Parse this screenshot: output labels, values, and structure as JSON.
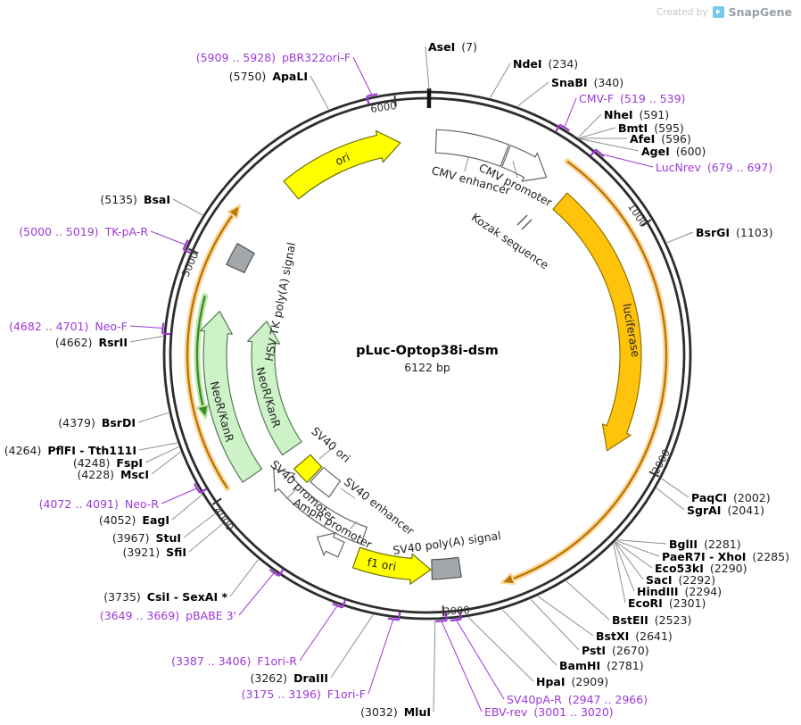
{
  "watermark": {
    "created_by": "Created by",
    "brand": "SnapGene"
  },
  "plasmid": {
    "name": "pLuc-Optop38i-dsm",
    "size": "6122 bp",
    "length_bp": 6122
  },
  "colors": {
    "ring": "#2d2d2d",
    "primer": "#9c39d6",
    "leader": "#8f8f8f",
    "yellow": "#ffff00",
    "gold": "#ffc30b",
    "light_green": "#cdf2c8",
    "gray_box": "#a2a7ac",
    "orange_arc": "#b97708",
    "green_arc": "#3f8c28"
  },
  "ticks": [
    {
      "label": "1000"
    },
    {
      "label": "2000"
    },
    {
      "label": "3000"
    },
    {
      "label": "4000"
    },
    {
      "label": "5000"
    },
    {
      "label": "6000"
    }
  ],
  "features": [
    {
      "label": "ori"
    },
    {
      "label": "CMV enhancer"
    },
    {
      "label": "CMV promoter"
    },
    {
      "label": "Kozak sequence"
    },
    {
      "label": "luciferase"
    },
    {
      "label": "HSV TK poly(A) signal"
    },
    {
      "label": "NeoR/KanR"
    },
    {
      "label": "NeoR/KanR"
    },
    {
      "label": "SV40 ori"
    },
    {
      "label": "SV40 enhancer"
    },
    {
      "label": "SV40 promoter"
    },
    {
      "label": "AmpR promoter"
    },
    {
      "label": "f1 ori"
    },
    {
      "label": "SV40 poly(A) signal"
    }
  ],
  "sites": [
    {
      "name": "pBR322ori-F",
      "pos": "(5909 .. 5928)",
      "type": "primer"
    },
    {
      "name": "ApaLI",
      "pos": "(5750)",
      "type": "enzyme"
    },
    {
      "name": "BsaI",
      "pos": "(5135)",
      "type": "enzyme"
    },
    {
      "name": "TK-pA-R",
      "pos": "(5000 .. 5019)",
      "type": "primer"
    },
    {
      "name": "Neo-F",
      "pos": "(4682 .. 4701)",
      "type": "primer"
    },
    {
      "name": "RsrII",
      "pos": "(4662)",
      "type": "enzyme"
    },
    {
      "name": "BsrDI",
      "pos": "(4379)",
      "type": "enzyme"
    },
    {
      "name": "PflFI - Tth111I",
      "pos": "(4264)",
      "type": "enzyme"
    },
    {
      "name": "FspI",
      "pos": "(4248)",
      "type": "enzyme"
    },
    {
      "name": "MscI",
      "pos": "(4228)",
      "type": "enzyme"
    },
    {
      "name": "Neo-R",
      "pos": "(4072 .. 4091)",
      "type": "primer"
    },
    {
      "name": "EagI",
      "pos": "(4052)",
      "type": "enzyme"
    },
    {
      "name": "StuI",
      "pos": "(3967)",
      "type": "enzyme"
    },
    {
      "name": "SfiI",
      "pos": "(3921)",
      "type": "enzyme"
    },
    {
      "name": "CsiI - SexAI *",
      "pos": "(3735)",
      "type": "enzyme"
    },
    {
      "name": "pBABE 3'",
      "pos": "(3649 .. 3669)",
      "type": "primer"
    },
    {
      "name": "F1ori-R",
      "pos": "(3387 .. 3406)",
      "type": "primer"
    },
    {
      "name": "DraIII",
      "pos": "(3262)",
      "type": "enzyme"
    },
    {
      "name": "F1ori-F",
      "pos": "(3175 .. 3196)",
      "type": "primer"
    },
    {
      "name": "MluI",
      "pos": "(3032)",
      "type": "enzyme"
    },
    {
      "name": "AseI",
      "pos": "(7)",
      "type": "enzyme"
    },
    {
      "name": "NdeI",
      "pos": "(234)",
      "type": "enzyme"
    },
    {
      "name": "SnaBI",
      "pos": "(340)",
      "type": "enzyme"
    },
    {
      "name": "CMV-F",
      "pos": "(519 .. 539)",
      "type": "primer"
    },
    {
      "name": "NheI",
      "pos": "(591)",
      "type": "enzyme"
    },
    {
      "name": "BmtI",
      "pos": "(595)",
      "type": "enzyme"
    },
    {
      "name": "AfeI",
      "pos": "(596)",
      "type": "enzyme"
    },
    {
      "name": "AgeI",
      "pos": "(600)",
      "type": "enzyme"
    },
    {
      "name": "LucNrev",
      "pos": "(679 .. 697)",
      "type": "primer"
    },
    {
      "name": "BsrGI",
      "pos": "(1103)",
      "type": "enzyme"
    },
    {
      "name": "PaqCI",
      "pos": "(2002)",
      "type": "enzyme"
    },
    {
      "name": "SgrAI",
      "pos": "(2041)",
      "type": "enzyme"
    },
    {
      "name": "BglII",
      "pos": "(2281)",
      "type": "enzyme"
    },
    {
      "name": "PaeR7I - XhoI",
      "pos": "(2285)",
      "type": "enzyme"
    },
    {
      "name": "Eco53kI",
      "pos": "(2290)",
      "type": "enzyme"
    },
    {
      "name": "SacI",
      "pos": "(2292)",
      "type": "enzyme"
    },
    {
      "name": "HindIII",
      "pos": "(2294)",
      "type": "enzyme"
    },
    {
      "name": "EcoRI",
      "pos": "(2301)",
      "type": "enzyme"
    },
    {
      "name": "BstEII",
      "pos": "(2523)",
      "type": "enzyme"
    },
    {
      "name": "BstXI",
      "pos": "(2641)",
      "type": "enzyme"
    },
    {
      "name": "PstI",
      "pos": "(2670)",
      "type": "enzyme"
    },
    {
      "name": "BamHI",
      "pos": "(2781)",
      "type": "enzyme"
    },
    {
      "name": "HpaI",
      "pos": "(2909)",
      "type": "enzyme"
    },
    {
      "name": "SV40pA-R",
      "pos": "(2947 .. 2966)",
      "type": "primer"
    },
    {
      "name": "EBV-rev",
      "pos": "(3001 .. 3020)",
      "type": "primer"
    }
  ]
}
